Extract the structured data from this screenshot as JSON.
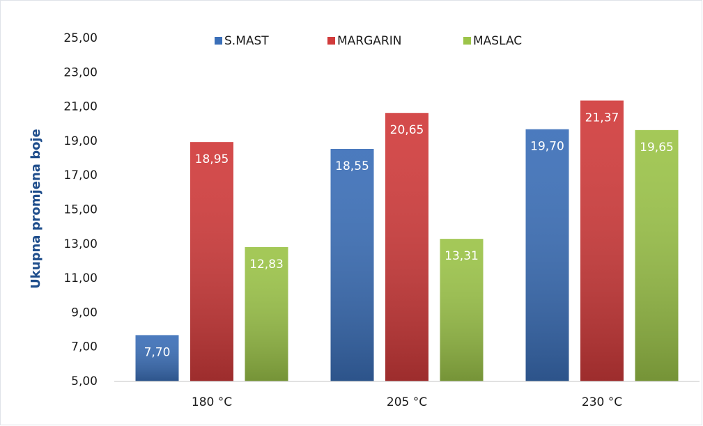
{
  "chart_data": {
    "type": "bar",
    "y_label": "Ukupna promjena boje",
    "categories": [
      "180 °C",
      "205 °C",
      "230 °C"
    ],
    "series": [
      {
        "name": "S.MAST",
        "color": "#3b6fb8",
        "values": [
          7.7,
          18.55,
          19.7
        ],
        "value_labels": [
          "7,70",
          "18,55",
          "19,70"
        ]
      },
      {
        "name": "MARGARIN",
        "color": "#d13b3b",
        "values": [
          18.95,
          20.65,
          21.37
        ],
        "value_labels": [
          "18,95",
          "20,65",
          "21,37"
        ]
      },
      {
        "name": "MASLAC",
        "color": "#9cc449",
        "values": [
          12.83,
          13.31,
          19.65
        ],
        "value_labels": [
          "12,83",
          "13,31",
          "19,65"
        ]
      }
    ],
    "ylim": [
      5,
      25
    ],
    "yticks": [
      {
        "value": 5,
        "label": "5,00"
      },
      {
        "value": 7,
        "label": "7,00"
      },
      {
        "value": 9,
        "label": "9,00"
      },
      {
        "value": 11,
        "label": "11,00"
      },
      {
        "value": 13,
        "label": "13,00"
      },
      {
        "value": 15,
        "label": "15,00"
      },
      {
        "value": 17,
        "label": "17,00"
      },
      {
        "value": 19,
        "label": "19,00"
      },
      {
        "value": 21,
        "label": "21,00"
      },
      {
        "value": 23,
        "label": "23,00"
      },
      {
        "value": 25,
        "label": "25,00"
      }
    ],
    "legend": "top"
  }
}
